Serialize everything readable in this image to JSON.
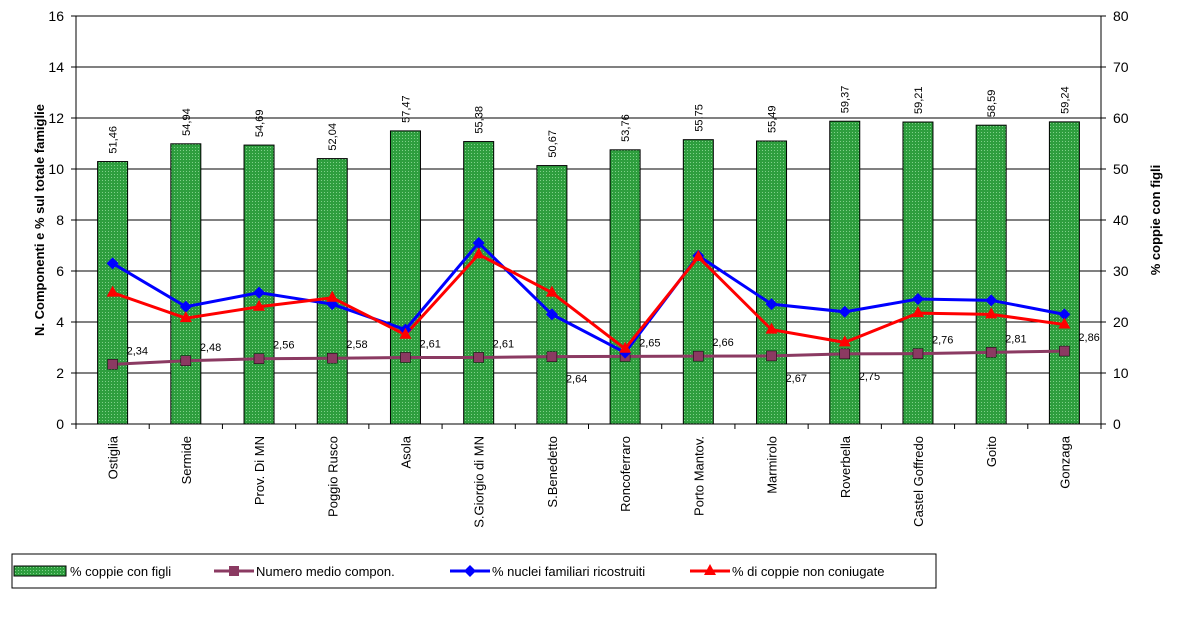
{
  "chart_data": {
    "type": "bar",
    "categories": [
      "Ostiglia",
      "Sermide",
      "Prov. Di MN",
      "Poggio Rusco",
      "Asola",
      "S.Giorgio di MN",
      "S.Benedetto",
      "Roncoferraro",
      "Porto Mantov.",
      "Marmirolo",
      "Roverbella",
      "Castel Goffredo",
      "Goito",
      "Gonzaga"
    ],
    "y_left": {
      "label": "N. Componenti e % sul totale famiglie",
      "range": [
        0,
        16
      ],
      "ticks": [
        "0",
        "2",
        "4",
        "6",
        "8",
        "10",
        "12",
        "14",
        "16"
      ]
    },
    "y_right": {
      "label": "% coppie con figli",
      "range": [
        0,
        80
      ],
      "ticks": [
        "0",
        "10",
        "20",
        "30",
        "40",
        "50",
        "60",
        "70",
        "80"
      ]
    },
    "series": [
      {
        "name": "% coppie con figli",
        "type": "bar",
        "axis": "right",
        "color": "#2e9e3e",
        "values": [
          51.46,
          54.94,
          54.69,
          52.04,
          57.47,
          55.38,
          50.67,
          53.76,
          55.75,
          55.49,
          59.37,
          59.21,
          58.59,
          59.24
        ],
        "labels": [
          "51,46",
          "54,94",
          "54,69",
          "52,04",
          "57,47",
          "55,38",
          "50,67",
          "53,76",
          "55,75",
          "55,49",
          "59,37",
          "59,21",
          "58,59",
          "59,24"
        ]
      },
      {
        "name": "Numero medio compon.",
        "type": "line",
        "axis": "left",
        "color": "#8b3a62",
        "marker": "square",
        "values": [
          2.34,
          2.48,
          2.56,
          2.58,
          2.61,
          2.61,
          2.64,
          2.65,
          2.66,
          2.67,
          2.75,
          2.76,
          2.81,
          2.86
        ],
        "labels": [
          "2,34",
          "2,48",
          "2,56",
          "2,58",
          "2,61",
          "2,61",
          "2,64",
          "2,65",
          "2,66",
          "2,67",
          "2,75",
          "2,76",
          "2,81",
          "2,86"
        ]
      },
      {
        "name": "% nuclei familiari ricostruiti",
        "type": "line",
        "axis": "left",
        "color": "#0000ff",
        "marker": "diamond",
        "values": [
          6.3,
          4.6,
          5.15,
          4.7,
          3.7,
          7.1,
          4.3,
          2.8,
          6.6,
          4.7,
          4.4,
          4.9,
          4.85,
          4.3
        ]
      },
      {
        "name": "% di coppie non coniugate",
        "type": "line",
        "axis": "left",
        "color": "#ff0000",
        "marker": "triangle",
        "values": [
          5.15,
          4.15,
          4.6,
          4.95,
          3.5,
          6.65,
          5.15,
          2.95,
          6.55,
          3.7,
          3.2,
          4.35,
          4.3,
          3.9
        ]
      }
    ],
    "legend_position": "bottom-left",
    "grid": true
  }
}
